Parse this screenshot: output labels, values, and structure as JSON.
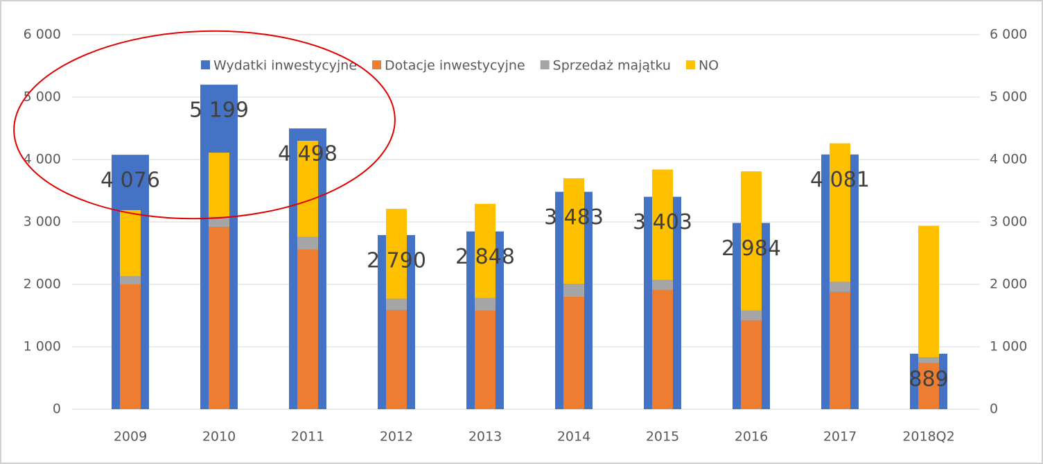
{
  "chart_data": {
    "type": "bar",
    "categories": [
      "2009",
      "2010",
      "2011",
      "2012",
      "2013",
      "2014",
      "2015",
      "2016",
      "2017",
      "2018Q2"
    ],
    "series": [
      {
        "name": "Wydatki inwestycyjne",
        "color": "#4472c4",
        "values": [
          4076,
          5199,
          4498,
          2790,
          2848,
          3483,
          3403,
          2984,
          4081,
          889
        ],
        "value_labels": [
          "4 076",
          "5 199",
          "4 498",
          "2 790",
          "2 848",
          "3 483",
          "3 403",
          "2 984",
          "4 081",
          "889"
        ]
      },
      {
        "name": "Dotacje inwestycyjne",
        "color": "#ed7d31",
        "values": [
          2000,
          2920,
          2560,
          1590,
          1580,
          1800,
          1910,
          1420,
          1880,
          740
        ]
      },
      {
        "name": "Sprzedaż majątku",
        "color": "#a5a5a5",
        "values": [
          130,
          160,
          200,
          180,
          200,
          210,
          160,
          160,
          160,
          90
        ]
      },
      {
        "name": "NO",
        "color": "#ffc000",
        "values": [
          1060,
          1030,
          1540,
          1440,
          1510,
          1690,
          1770,
          2230,
          2220,
          2110
        ]
      }
    ],
    "ylim": [
      0,
      6000
    ],
    "yticks": [
      0,
      {
        "value": 1000,
        "label": "1 000"
      },
      {
        "value": 2000,
        "label": "2 000"
      },
      {
        "value": 3000,
        "label": "3 000"
      },
      {
        "value": 4000,
        "label": "4 000"
      },
      {
        "value": 5000,
        "label": "5 000"
      },
      {
        "value": 6000,
        "label": "6 000"
      }
    ],
    "y2lim": [
      0,
      6000
    ],
    "y2ticks": [
      0,
      {
        "value": 1000,
        "label": "1 000"
      },
      {
        "value": 2000,
        "label": "2 000"
      },
      {
        "value": 3000,
        "label": "3 000"
      },
      {
        "value": 4000,
        "label": "4 000"
      },
      {
        "value": 5000,
        "label": "5 000"
      },
      {
        "value": 6000,
        "label": "6 000"
      }
    ],
    "grid": true,
    "legend": "top"
  }
}
